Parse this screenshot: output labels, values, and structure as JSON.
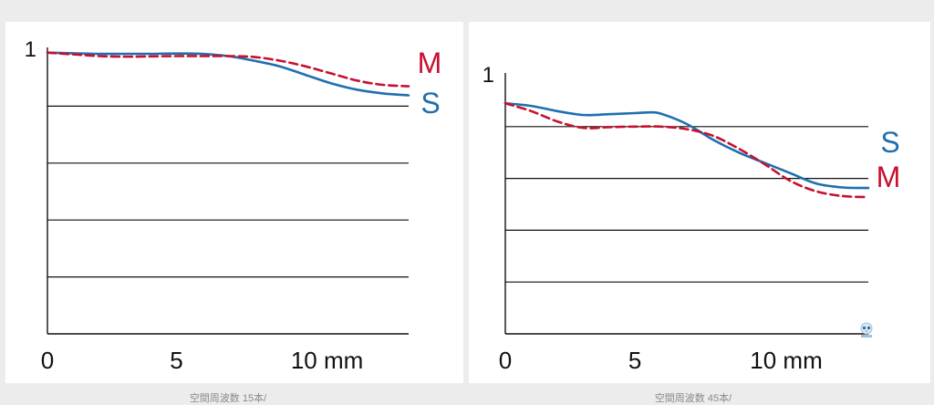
{
  "colors": {
    "sagittal": "#1f6fb0",
    "meridional": "#c8102e",
    "axis": "#111111",
    "grid": "#111111",
    "panel_bg": "#ffffff",
    "page_bg": "#ececec"
  },
  "captions": {
    "left": "空間周波数 15本/",
    "right": "空間周波数 45本/"
  },
  "watermark": {
    "icon": "owl-logo-icon"
  },
  "chart_data": [
    {
      "type": "line",
      "title": "",
      "xlabel": "",
      "ylabel": "",
      "x_tick_labels": [
        "0",
        "5",
        "10 mm"
      ],
      "x_ticks": [
        0,
        5,
        10
      ],
      "y_tick_labels": [
        "1"
      ],
      "xlim": [
        0,
        14
      ],
      "ylim": [
        0,
        1
      ],
      "grid": "horizontal lines at 0.2, 0.4, 0.6, 0.8",
      "series": [
        {
          "name": "S",
          "color": "#1f6fb0",
          "style": "solid",
          "x": [
            0,
            1,
            2,
            3,
            4,
            5,
            6,
            7,
            8,
            9,
            10,
            11,
            12,
            13,
            14
          ],
          "y": [
            0.988,
            0.986,
            0.984,
            0.984,
            0.984,
            0.985,
            0.984,
            0.976,
            0.96,
            0.94,
            0.91,
            0.88,
            0.858,
            0.845,
            0.838
          ]
        },
        {
          "name": "M",
          "color": "#c8102e",
          "style": "dashed",
          "x": [
            0,
            1,
            2,
            3,
            4,
            5,
            6,
            7,
            8,
            9,
            10,
            11,
            12,
            13,
            14
          ],
          "y": [
            0.988,
            0.982,
            0.976,
            0.974,
            0.975,
            0.976,
            0.976,
            0.976,
            0.973,
            0.96,
            0.94,
            0.915,
            0.89,
            0.875,
            0.87
          ]
        }
      ]
    },
    {
      "type": "line",
      "title": "",
      "xlabel": "",
      "ylabel": "",
      "x_tick_labels": [
        "0",
        "5",
        "10 mm"
      ],
      "x_ticks": [
        0,
        5,
        10
      ],
      "y_tick_labels": [
        "1"
      ],
      "xlim": [
        0,
        14
      ],
      "ylim": [
        0,
        1
      ],
      "grid": "horizontal lines at 0.2, 0.4, 0.6, 0.8",
      "series": [
        {
          "name": "S",
          "color": "#1f6fb0",
          "style": "solid",
          "x": [
            0,
            1,
            2,
            3,
            4,
            5,
            5.6,
            6,
            7,
            8,
            9,
            10,
            11,
            12,
            13,
            14
          ],
          "y": [
            0.89,
            0.88,
            0.86,
            0.845,
            0.848,
            0.852,
            0.855,
            0.85,
            0.81,
            0.75,
            0.7,
            0.66,
            0.62,
            0.58,
            0.565,
            0.563
          ]
        },
        {
          "name": "M",
          "color": "#c8102e",
          "style": "dashed",
          "x": [
            0,
            1,
            2,
            3,
            4,
            5,
            6,
            7,
            8,
            9,
            10,
            11,
            12,
            13,
            14
          ],
          "y": [
            0.89,
            0.86,
            0.82,
            0.795,
            0.798,
            0.8,
            0.8,
            0.79,
            0.765,
            0.715,
            0.655,
            0.59,
            0.55,
            0.532,
            0.528
          ]
        }
      ]
    }
  ]
}
